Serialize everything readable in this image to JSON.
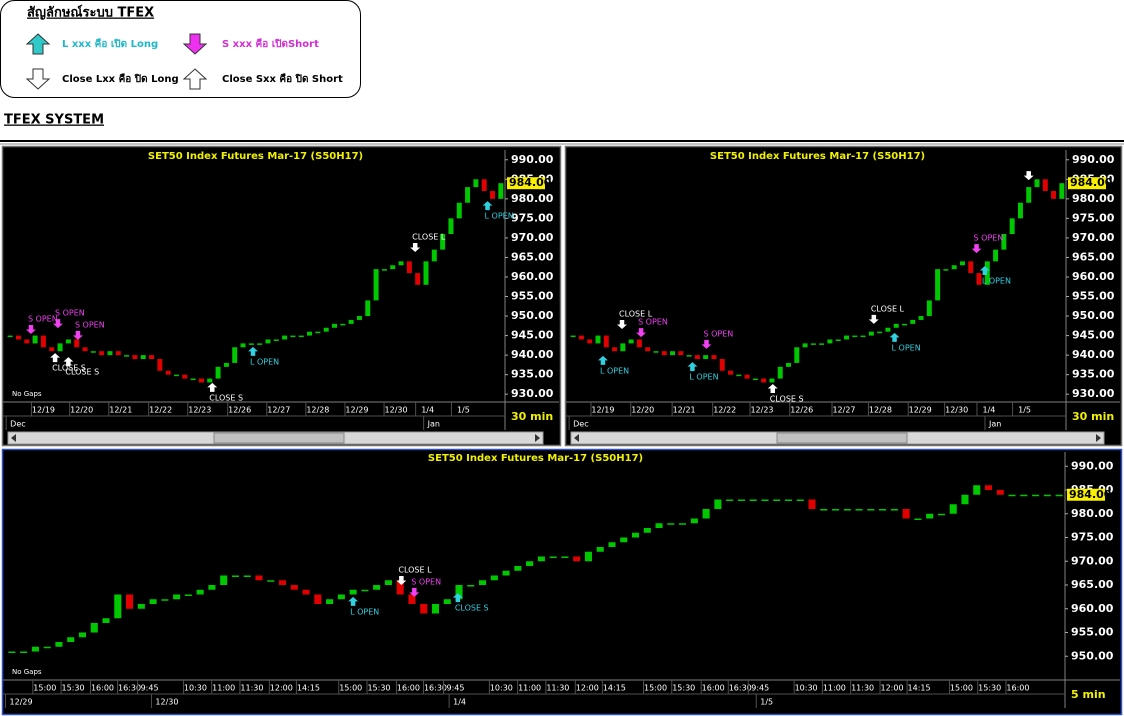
{
  "legend": {
    "title": "สัญลักษณ์ระบบ TFEX",
    "items": [
      {
        "text": "L xxx คือ เปิด Long",
        "color": "#20b8c8",
        "fill": "#30c8c8",
        "arrow": "up"
      },
      {
        "text": "S xxx คือ เปิดShort",
        "color": "#d030d0",
        "fill": "#f030f0",
        "arrow": "down"
      },
      {
        "text": "Close Lxx คือ ปิด Long",
        "color": "#000000",
        "fill": "#ffffff",
        "arrow": "down"
      },
      {
        "text": "Close Sxx คือ ปิด Short",
        "color": "#000000",
        "fill": "#ffffff",
        "arrow": "up"
      }
    ]
  },
  "heading": "TFEX SYSTEM",
  "chart_data": [
    {
      "type": "candlestick",
      "title": "SET50  Index  Futures  Mar-17  (S50H17)",
      "up_color": "#00c800",
      "down_color": "#e00000",
      "values": [
        945,
        944,
        943,
        945,
        942,
        941,
        943,
        944,
        942,
        941,
        941,
        940,
        941,
        940,
        940,
        939,
        940,
        939,
        936,
        935,
        935,
        934,
        934,
        933,
        934,
        937,
        938,
        942,
        943,
        943,
        943,
        944,
        944,
        945,
        945,
        945,
        946,
        946,
        947,
        948,
        948,
        949,
        950,
        954,
        962,
        962,
        963,
        964,
        961,
        958,
        964,
        967,
        971,
        975,
        979,
        983,
        985,
        982,
        980,
        984
      ],
      "xlim": [
        0,
        60
      ],
      "ylim": [
        928,
        992.5
      ],
      "yticks": [
        {
          "value": 930,
          "label": "930.00"
        },
        {
          "value": 935,
          "label": "935.00"
        },
        {
          "value": 940,
          "label": "940.00"
        },
        {
          "value": 945,
          "label": "945.00"
        },
        {
          "value": 950,
          "label": "950.00"
        },
        {
          "value": 955,
          "label": "955.00"
        },
        {
          "value": 960,
          "label": "960.00"
        },
        {
          "value": 965,
          "label": "965.00"
        },
        {
          "value": 970,
          "label": "970.00"
        },
        {
          "value": 975,
          "label": "975.00"
        },
        {
          "value": 980,
          "label": "980.00"
        },
        {
          "value": 985,
          "label": "985.00"
        },
        {
          "value": 990,
          "label": "990.00"
        }
      ],
      "xticks": [
        {
          "value": 4.5,
          "label": "12/19"
        },
        {
          "value": 9.1,
          "label": "12/20"
        },
        {
          "value": 13.8,
          "label": "12/21"
        },
        {
          "value": 18.6,
          "label": "12/22"
        },
        {
          "value": 23.3,
          "label": "12/23"
        },
        {
          "value": 28.1,
          "label": "12/26"
        },
        {
          "value": 32.8,
          "label": "12/27"
        },
        {
          "value": 37.5,
          "label": "12/28"
        },
        {
          "value": 42.2,
          "label": "12/29"
        },
        {
          "value": 46.9,
          "label": "12/30"
        },
        {
          "value": 50.7,
          "label": "1/4"
        },
        {
          "value": 55,
          "label": "1/5"
        }
      ],
      "xticks2": [
        {
          "value": 0.5,
          "label": "Dec"
        },
        {
          "value": 50.7,
          "label": "Jan"
        }
      ],
      "last_price": {
        "value": 984,
        "label": "984.00"
      },
      "note": "No Gaps",
      "interval": "30  min",
      "annotations": [
        {
          "text": "S OPEN",
          "x": 3.0,
          "y": 945.4,
          "arrow": "down",
          "color": "#f040f0"
        },
        {
          "text": "S OPEN",
          "x": 6.25,
          "y": 946.9,
          "arrow": "down",
          "color": "#f040f0"
        },
        {
          "text": "S OPEN",
          "x": 8.65,
          "y": 943.9,
          "arrow": "down",
          "color": "#f040f0"
        },
        {
          "text": "CLOSE  S",
          "x": 5.9,
          "y": 940.5,
          "arrow": "up",
          "color": "#ffffff"
        },
        {
          "text": "CLOSE  S",
          "x": 7.5,
          "y": 939.5,
          "arrow": "up",
          "color": "#ffffff"
        },
        {
          "text": "CLOSE  S",
          "x": 24.8,
          "y": 932.9,
          "arrow": "up",
          "color": "#ffffff"
        },
        {
          "text": "L  OPEN",
          "x": 29.7,
          "y": 942.1,
          "arrow": "up",
          "color": "#30d0e0"
        },
        {
          "text": "CLOSE  L",
          "x": 49.2,
          "y": 966.4,
          "arrow": "down",
          "color": "#ffffff"
        },
        {
          "text": "L  OPEN",
          "x": 57.9,
          "y": 979.4,
          "arrow": "up",
          "color": "#30d0e0"
        }
      ]
    },
    {
      "type": "candlestick",
      "title": "SET50  Index  Futures  Mar-17  (S50H17)",
      "up_color": "#00c800",
      "down_color": "#e00000",
      "values": [
        945,
        944,
        943,
        945,
        942,
        941,
        943,
        944,
        942,
        941,
        941,
        940,
        941,
        940,
        940,
        939,
        940,
        939,
        936,
        935,
        935,
        934,
        934,
        933,
        934,
        937,
        938,
        942,
        943,
        943,
        943,
        944,
        944,
        945,
        945,
        945,
        946,
        946,
        947,
        948,
        948,
        949,
        950,
        954,
        962,
        962,
        963,
        964,
        961,
        958,
        964,
        967,
        971,
        975,
        979,
        983,
        985,
        982,
        980,
        984
      ],
      "xlim": [
        0,
        60
      ],
      "ylim": [
        928,
        992.5
      ],
      "yticks": [
        {
          "value": 930,
          "label": "930.00"
        },
        {
          "value": 935,
          "label": "935.00"
        },
        {
          "value": 940,
          "label": "940.00"
        },
        {
          "value": 945,
          "label": "945.00"
        },
        {
          "value": 950,
          "label": "950.00"
        },
        {
          "value": 955,
          "label": "955.00"
        },
        {
          "value": 960,
          "label": "960.00"
        },
        {
          "value": 965,
          "label": "965.00"
        },
        {
          "value": 970,
          "label": "970.00"
        },
        {
          "value": 975,
          "label": "975.00"
        },
        {
          "value": 980,
          "label": "980.00"
        },
        {
          "value": 985,
          "label": "985.00"
        },
        {
          "value": 990,
          "label": "990.00"
        }
      ],
      "xticks": [
        {
          "value": 4.1,
          "label": "12/19"
        },
        {
          "value": 8.9,
          "label": "12/20"
        },
        {
          "value": 13.9,
          "label": "12/21"
        },
        {
          "value": 18.8,
          "label": "12/22"
        },
        {
          "value": 23.3,
          "label": "12/23"
        },
        {
          "value": 28.1,
          "label": "12/26"
        },
        {
          "value": 33.2,
          "label": "12/27"
        },
        {
          "value": 37.6,
          "label": "12/28"
        },
        {
          "value": 42.4,
          "label": "12/29"
        },
        {
          "value": 46.8,
          "label": "12/30"
        },
        {
          "value": 50.7,
          "label": "1/4"
        },
        {
          "value": 55,
          "label": "1/5"
        }
      ],
      "xticks2": [
        {
          "value": 0.5,
          "label": "Dec"
        },
        {
          "value": 50.7,
          "label": "Jan"
        }
      ],
      "last_price": {
        "value": 984,
        "label": "984.00"
      },
      "interval": "30  min",
      "annotations": [
        {
          "text": "L  OPEN",
          "x": 4.1,
          "y": 939.8,
          "arrow": "up",
          "color": "#30d0e0"
        },
        {
          "text": "CLOSE  L",
          "x": 6.4,
          "y": 946.7,
          "arrow": "down",
          "color": "#ffffff"
        },
        {
          "text": "S  OPEN",
          "x": 8.7,
          "y": 944.6,
          "arrow": "down",
          "color": "#f040f0"
        },
        {
          "text": "L  OPEN",
          "x": 14.9,
          "y": 938.2,
          "arrow": "up",
          "color": "#30d0e0"
        },
        {
          "text": "S  OPEN",
          "x": 16.6,
          "y": 941.6,
          "arrow": "down",
          "color": "#f040f0"
        },
        {
          "text": "CLOSE  S",
          "x": 24.6,
          "y": 932.6,
          "arrow": "up",
          "color": "#ffffff"
        },
        {
          "text": "CLOSE  L",
          "x": 36.8,
          "y": 948.0,
          "arrow": "down",
          "color": "#ffffff"
        },
        {
          "text": "L  OPEN",
          "x": 39.3,
          "y": 945.7,
          "arrow": "up",
          "color": "#30d0e0"
        },
        {
          "text": "S  OPEN",
          "x": 49.2,
          "y": 966.1,
          "arrow": "down",
          "color": "#f040f0"
        },
        {
          "text": "L  OPEN",
          "x": 50.2,
          "y": 962.8,
          "arrow": "up",
          "color": "#30d0e0"
        },
        {
          "text": "",
          "x": 55.5,
          "y": 984.8,
          "arrow": "down",
          "color": "#ffffff"
        }
      ]
    },
    {
      "type": "candlestick",
      "title": "SET50  Index  Futures  Mar-17  (S50H17)",
      "up_color": "#00c800",
      "down_color": "#e00000",
      "values": [
        951,
        951,
        952,
        952,
        953,
        954,
        955,
        957,
        958,
        963,
        960,
        961,
        962,
        962,
        963,
        963,
        964,
        965,
        967,
        967,
        967,
        966,
        966,
        965,
        964,
        963,
        961,
        962,
        963,
        964,
        964,
        965,
        966,
        963,
        961,
        959,
        961,
        962,
        965,
        965,
        966,
        967,
        968,
        969,
        970,
        971,
        971,
        971,
        970,
        972,
        973,
        974,
        975,
        976,
        977,
        978,
        978,
        978,
        979,
        981,
        983,
        983,
        983,
        983,
        983,
        983,
        983,
        983,
        981,
        981,
        981,
        981,
        981,
        981,
        981,
        981,
        979,
        979,
        980,
        980,
        982,
        984,
        986,
        985,
        984,
        984,
        984,
        984,
        984,
        984
      ],
      "xlim": [
        0,
        90
      ],
      "ylim": [
        945,
        993
      ],
      "yticks": [
        {
          "value": 950,
          "label": "950.00"
        },
        {
          "value": 955,
          "label": "955.00"
        },
        {
          "value": 960,
          "label": "960.00"
        },
        {
          "value": 965,
          "label": "965.00"
        },
        {
          "value": 970,
          "label": "970.00"
        },
        {
          "value": 975,
          "label": "975.00"
        },
        {
          "value": 980,
          "label": "980.00"
        },
        {
          "value": 985,
          "label": "985.00"
        },
        {
          "value": 990,
          "label": "990.00"
        }
      ],
      "xticks": [
        {
          "value": 3.3,
          "label": "15:00"
        },
        {
          "value": 5.7,
          "label": "15:30"
        },
        {
          "value": 8.2,
          "label": "16:00"
        },
        {
          "value": 10.5,
          "label": "16:30"
        },
        {
          "value": 12.2,
          "label": "9:45"
        },
        {
          "value": 16.1,
          "label": "10:30"
        },
        {
          "value": 18.5,
          "label": "11:00"
        },
        {
          "value": 20.9,
          "label": "11:30"
        },
        {
          "value": 23.4,
          "label": "12:00"
        },
        {
          "value": 25.7,
          "label": "14:15"
        },
        {
          "value": 29.3,
          "label": "15:00"
        },
        {
          "value": 31.7,
          "label": "15:30"
        },
        {
          "value": 34.2,
          "label": "16:00"
        },
        {
          "value": 36.5,
          "label": "16:30"
        },
        {
          "value": 38.2,
          "label": "9:45"
        },
        {
          "value": 42.1,
          "label": "10:30"
        },
        {
          "value": 44.5,
          "label": "11:00"
        },
        {
          "value": 46.9,
          "label": "11:30"
        },
        {
          "value": 49.4,
          "label": "12:00"
        },
        {
          "value": 51.7,
          "label": "14:15"
        },
        {
          "value": 55.2,
          "label": "15:00"
        },
        {
          "value": 57.6,
          "label": "15:30"
        },
        {
          "value": 60.1,
          "label": "16:00"
        },
        {
          "value": 62.4,
          "label": "16:30"
        },
        {
          "value": 64.1,
          "label": "9:45"
        },
        {
          "value": 68.0,
          "label": "10:30"
        },
        {
          "value": 70.4,
          "label": "11:00"
        },
        {
          "value": 72.8,
          "label": "11:30"
        },
        {
          "value": 75.3,
          "label": "12:00"
        },
        {
          "value": 77.6,
          "label": "14:15"
        },
        {
          "value": 81.2,
          "label": "15:00"
        },
        {
          "value": 83.6,
          "label": "15:30"
        },
        {
          "value": 86.0,
          "label": "16:00"
        }
      ],
      "xticks2": [
        {
          "value": 0.3,
          "label": "12/29"
        },
        {
          "value": 12.7,
          "label": "12/30"
        },
        {
          "value": 38.0,
          "label": "1/4"
        },
        {
          "value": 64.1,
          "label": "1/5"
        }
      ],
      "last_price": {
        "value": 984,
        "label": "984.00"
      },
      "note": "No Gaps",
      "interval": "5  min",
      "annotations": [
        {
          "text": "L  OPEN",
          "x": 29.5,
          "y": 962.5,
          "arrow": "up",
          "color": "#30d0e0"
        },
        {
          "text": "CLOSE  L",
          "x": 33.6,
          "y": 965.0,
          "arrow": "down",
          "color": "#ffffff"
        },
        {
          "text": "S  OPEN",
          "x": 34.7,
          "y": 962.5,
          "arrow": "down",
          "color": "#f040f0"
        },
        {
          "text": "CLOSE S",
          "x": 38.4,
          "y": 963.3,
          "arrow": "up",
          "color": "#30d0e0"
        }
      ]
    }
  ]
}
